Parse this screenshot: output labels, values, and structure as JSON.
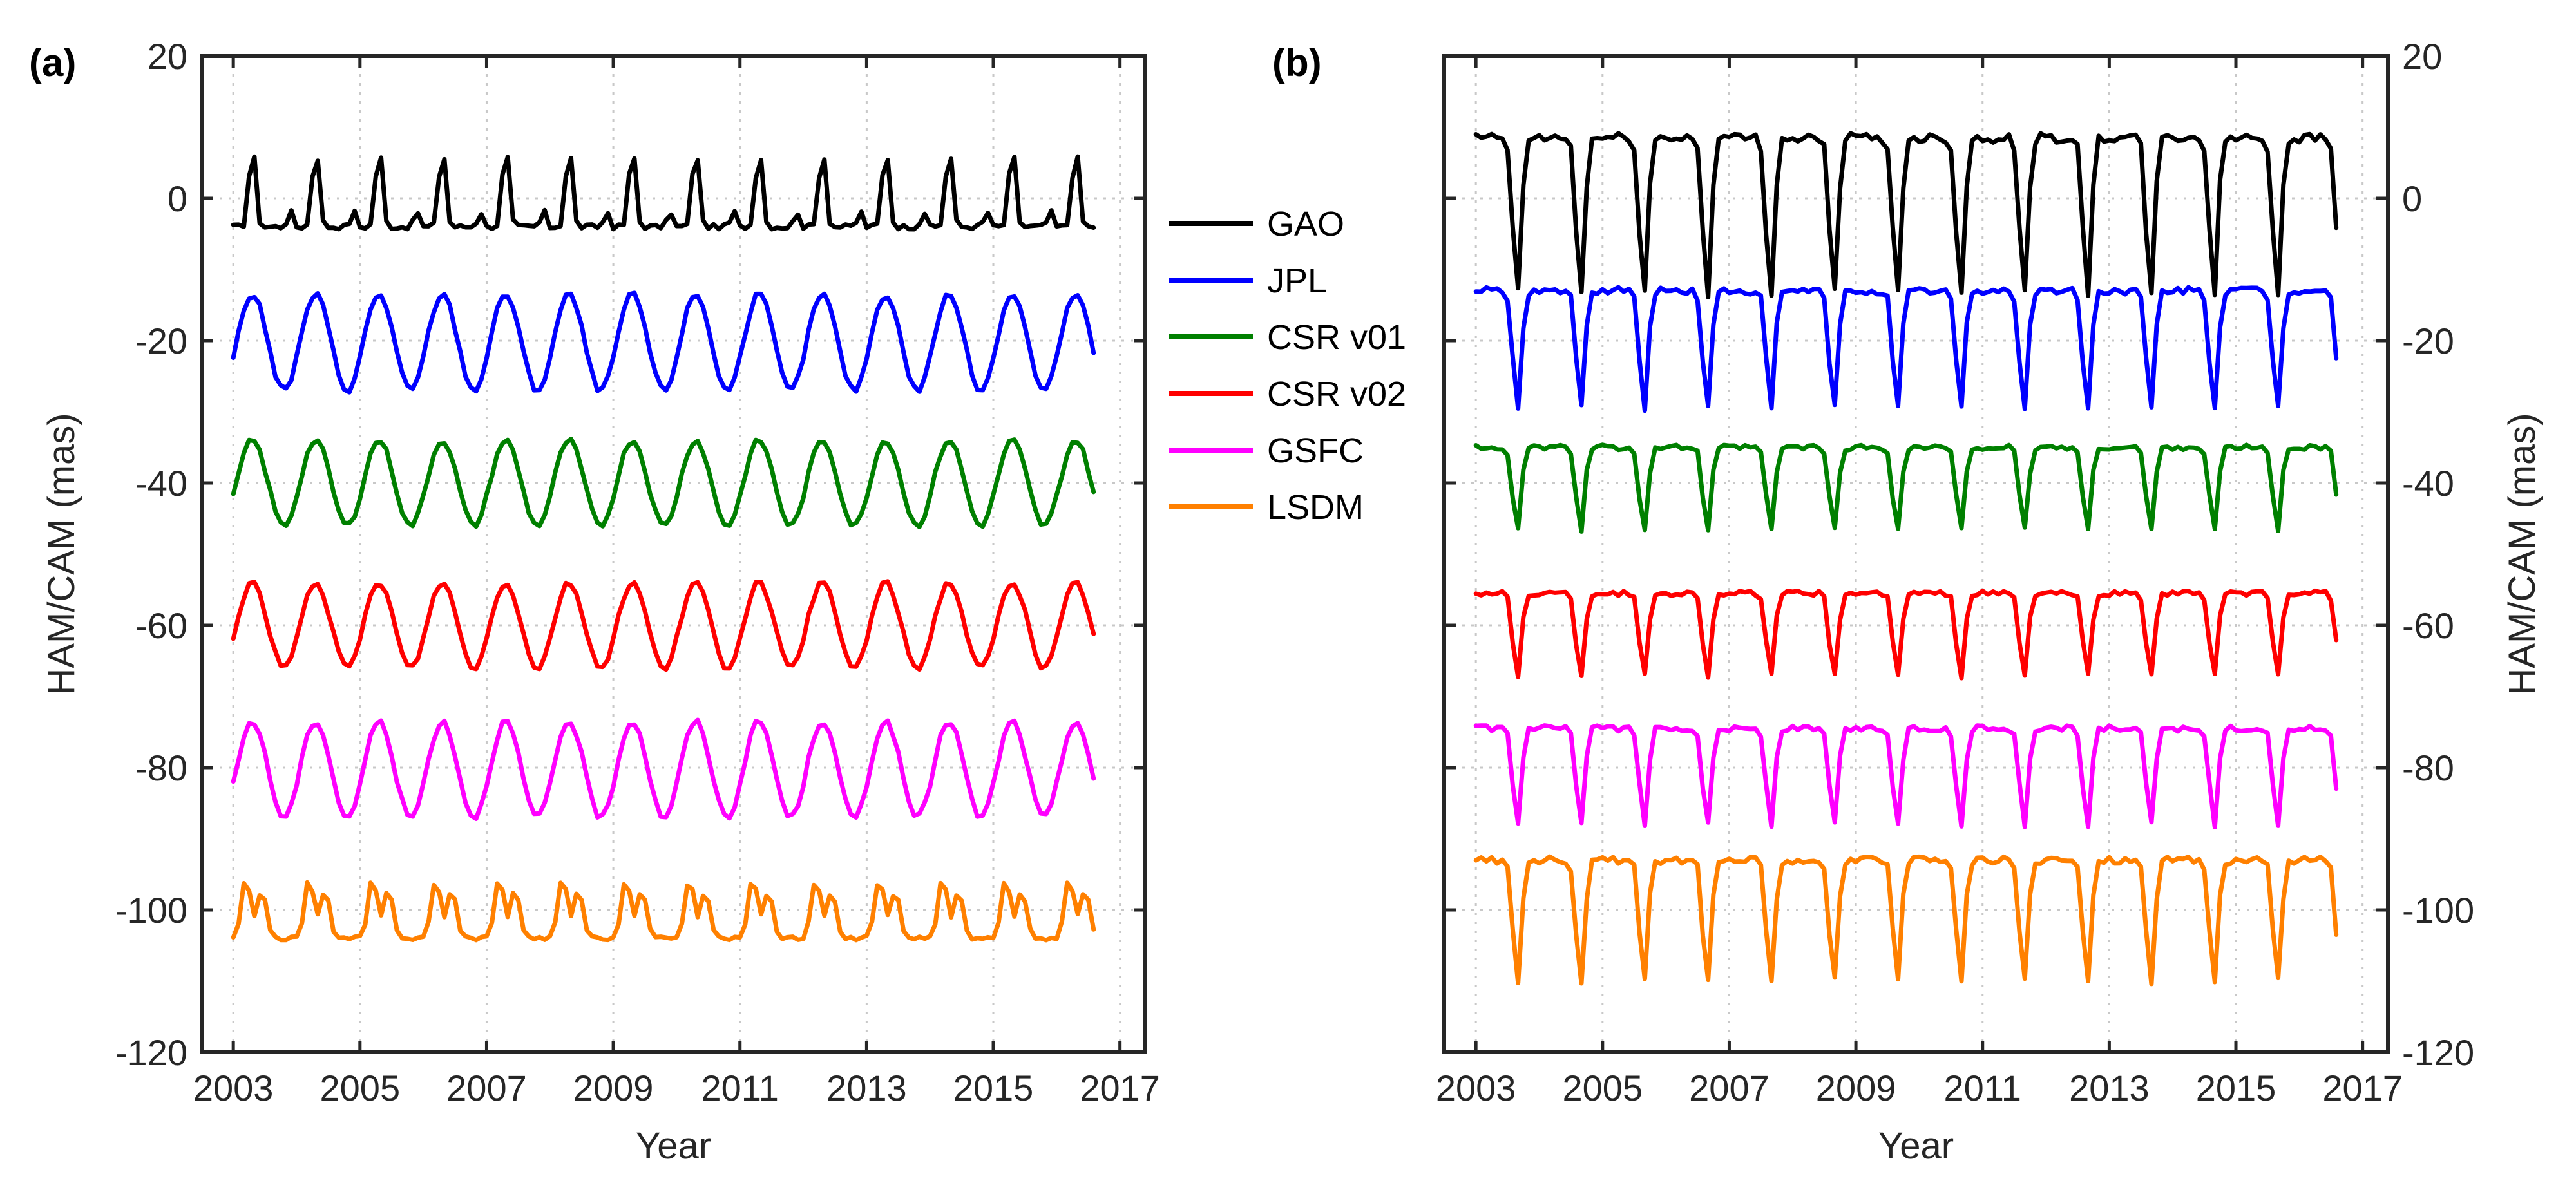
{
  "chart_data": [
    {
      "type": "line",
      "panel_label": "(a)",
      "xlabel": "Year",
      "ylabel": "HAM/CAM (mas)",
      "ylabel_side": "left",
      "xlim": [
        2002.5,
        2017.4
      ],
      "ylim": [
        -120,
        20
      ],
      "xticks": [
        2003,
        2005,
        2007,
        2009,
        2011,
        2013,
        2015,
        2017
      ],
      "yticks": [
        -120,
        -100,
        -80,
        -60,
        -40,
        -20,
        0,
        20
      ],
      "x_range": [
        2003.0,
        2016.6
      ],
      "grid": "vertical dotted",
      "series": [
        {
          "name": "GAO",
          "color": "#000000",
          "offset": 0,
          "mean": 0,
          "peak": 8,
          "trough": -4,
          "shape": "spiky"
        },
        {
          "name": "JPL",
          "color": "#0000ff",
          "offset": -20,
          "mean": -20,
          "peak": -13.5,
          "trough": -27,
          "shape": "sine"
        },
        {
          "name": "CSR v01",
          "color": "#008000",
          "offset": -40,
          "mean": -40,
          "peak": -34,
          "trough": -46,
          "shape": "sine"
        },
        {
          "name": "CSR v02",
          "color": "#ff0000",
          "offset": -60,
          "mean": -60,
          "peak": -54,
          "trough": -66,
          "shape": "sine"
        },
        {
          "name": "GSFC",
          "color": "#ff00ff",
          "offset": -80,
          "mean": -80,
          "peak": -73.5,
          "trough": -87,
          "shape": "sine"
        },
        {
          "name": "LSDM",
          "color": "#ff8000",
          "offset": -100,
          "mean": -100,
          "peak": -95.5,
          "trough": -104,
          "shape": "double-peak"
        }
      ]
    },
    {
      "type": "line",
      "panel_label": "(b)",
      "xlabel": "Year",
      "ylabel": "HAM/CAM (mas)",
      "ylabel_side": "right",
      "xlim": [
        2002.5,
        2017.4
      ],
      "ylim": [
        -120,
        20
      ],
      "xticks": [
        2003,
        2005,
        2007,
        2009,
        2011,
        2013,
        2015,
        2017
      ],
      "yticks": [
        -120,
        -100,
        -80,
        -60,
        -40,
        -20,
        0,
        20
      ],
      "x_range": [
        2003.0,
        2016.6
      ],
      "grid": "vertical dotted",
      "series": [
        {
          "name": "GAO",
          "color": "#000000",
          "offset": 0,
          "mean": 0,
          "peak": 8.5,
          "trough": -14,
          "shape": "skewed-down"
        },
        {
          "name": "JPL",
          "color": "#0000ff",
          "offset": -20,
          "mean": -20,
          "peak": -13,
          "trough": -30,
          "shape": "skewed-down"
        },
        {
          "name": "CSR v01",
          "color": "#008000",
          "offset": -40,
          "mean": -40,
          "peak": -35,
          "trough": -47,
          "shape": "skewed-down"
        },
        {
          "name": "CSR v02",
          "color": "#ff0000",
          "offset": -60,
          "mean": -60,
          "peak": -55.5,
          "trough": -67.5,
          "shape": "skewed-down"
        },
        {
          "name": "GSFC",
          "color": "#ff00ff",
          "offset": -80,
          "mean": -80,
          "peak": -74.5,
          "trough": -88.5,
          "shape": "skewed-down"
        },
        {
          "name": "LSDM",
          "color": "#ff8000",
          "offset": -100,
          "mean": -100,
          "peak": -93,
          "trough": -110.5,
          "shape": "skewed-down"
        }
      ]
    }
  ],
  "legend": {
    "placement": "between panels",
    "entries": [
      "GAO",
      "JPL",
      "CSR v01",
      "CSR v02",
      "GSFC",
      "LSDM"
    ],
    "colors": [
      "#000000",
      "#0000ff",
      "#008000",
      "#ff0000",
      "#ff00ff",
      "#ff8000"
    ]
  }
}
